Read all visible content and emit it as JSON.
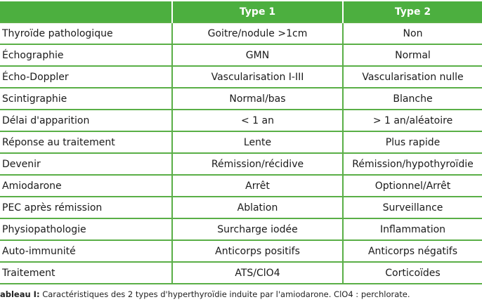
{
  "colors": {
    "header_bg": "#4caf3f",
    "header_text": "#ffffff",
    "grid_line": "#5aaf47"
  },
  "header": {
    "col0": "",
    "col1": "Type 1",
    "col2": "Type 2"
  },
  "rows": [
    {
      "label": "Thyroïde pathologique",
      "type1": "Goitre/nodule >1cm",
      "type2": "Non"
    },
    {
      "label": "Échographie",
      "type1": "GMN",
      "type2": "Normal"
    },
    {
      "label": "Écho-Doppler",
      "type1": "Vascularisation I-III",
      "type2": "Vascularisation nulle"
    },
    {
      "label": "Scintigraphie",
      "type1": "Normal/bas",
      "type2": "Blanche"
    },
    {
      "label": "Délai d'apparition",
      "type1": "< 1 an",
      "type2": "> 1 an/aléatoire"
    },
    {
      "label": "Réponse au traitement",
      "type1": "Lente",
      "type2": "Plus rapide"
    },
    {
      "label": "Devenir",
      "type1": "Rémission/récidive",
      "type2": "Rémission/hypothyroïdie"
    },
    {
      "label": "Amiodarone",
      "type1": "Arrêt",
      "type2": "Optionnel/Arrêt"
    },
    {
      "label": "PEC après rémission",
      "type1": "Ablation",
      "type2": "Surveillance"
    },
    {
      "label": "Physiopathologie",
      "type1": "Surcharge iodée",
      "type2": "Inflammation"
    },
    {
      "label": "Auto-immunité",
      "type1": "Anticorps positifs",
      "type2": "Anticorps négatifs"
    },
    {
      "label": "Traitement",
      "type1": "ATS/ClO4",
      "type2": "Corticoïdes"
    }
  ],
  "caption": {
    "label": "ableau I:",
    "text": " Caractéristiques des 2 types d'hyperthyroïdie induite par l'amiodarone. ClO4 : perchlorate."
  }
}
